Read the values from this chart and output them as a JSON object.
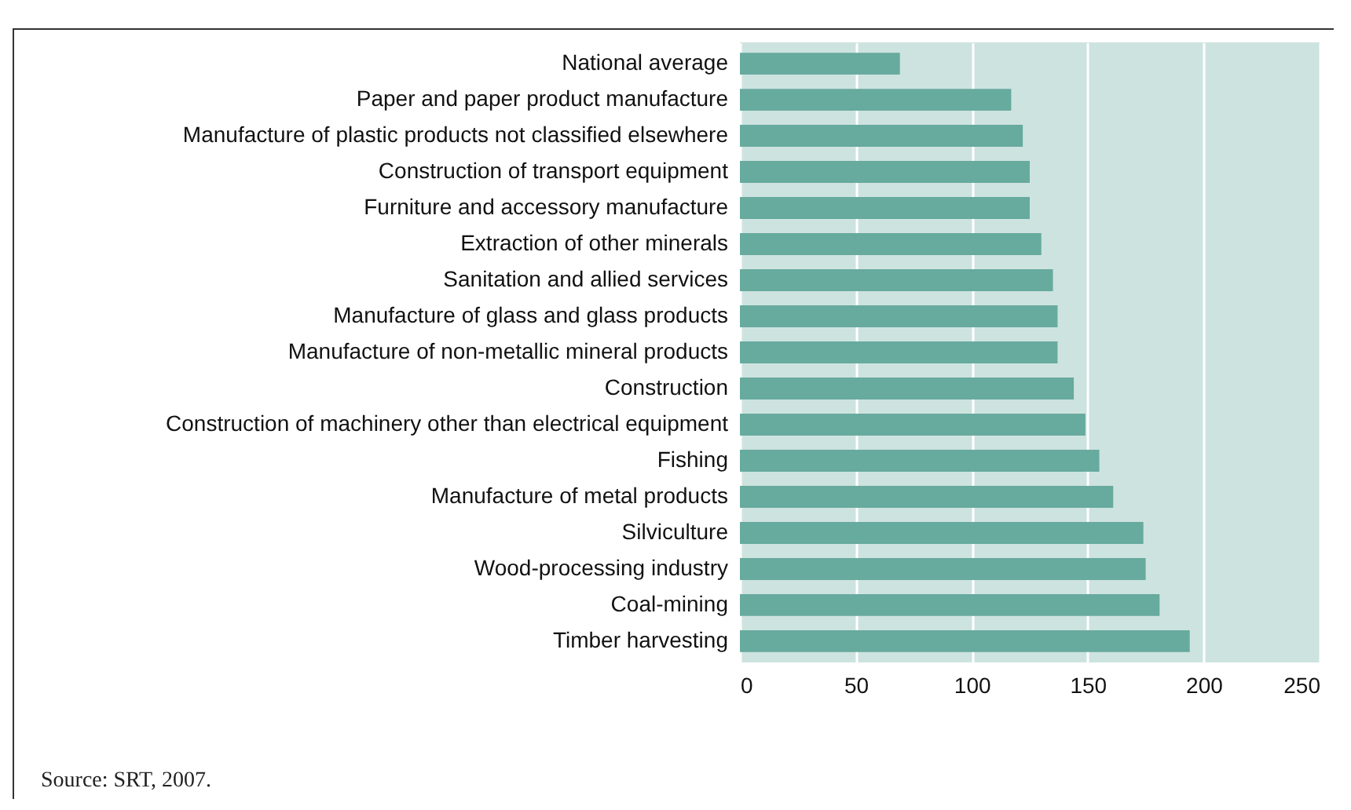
{
  "chart_data": {
    "type": "bar",
    "orientation": "horizontal",
    "categories": [
      "National average",
      "Paper and paper product manufacture",
      "Manufacture of plastic products not classified elsewhere",
      "Construction of transport equipment",
      "Furniture and accessory manufacture",
      "Extraction of other minerals",
      "Sanitation and allied services",
      "Manufacture of glass and glass products",
      "Manufacture of non-metallic mineral products",
      "Construction",
      "Construction of machinery other than electrical equipment",
      "Fishing",
      "Manufacture of metal products",
      "Silviculture",
      "Wood-processing industry",
      "Coal-mining",
      "Timber harvesting"
    ],
    "values": [
      69,
      117,
      122,
      125,
      125,
      130,
      135,
      137,
      137,
      144,
      149,
      155,
      161,
      174,
      175,
      181,
      194
    ],
    "color": "#67aa9e",
    "xlim": [
      0,
      250
    ],
    "xticks": [
      0,
      50,
      100,
      150,
      200,
      250
    ],
    "grid": "x",
    "annotations": [
      "Source: SRT, 2007."
    ]
  }
}
